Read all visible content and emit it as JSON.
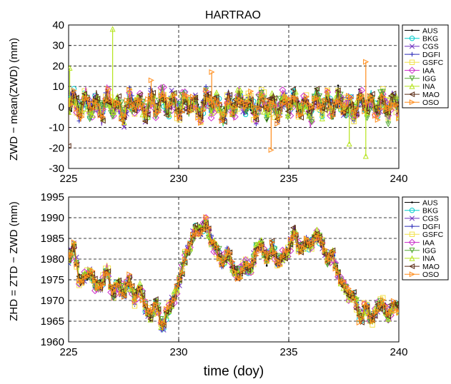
{
  "figure": {
    "xlabel": "time (doy)"
  },
  "legend_entries": [
    {
      "name": "AUS",
      "color": "#000000",
      "marker": "dot"
    },
    {
      "name": "BKG",
      "color": "#00cccc",
      "marker": "circle"
    },
    {
      "name": "CGS",
      "color": "#6b2fbf",
      "marker": "x"
    },
    {
      "name": "DGFI",
      "color": "#2a2ab8",
      "marker": "plus"
    },
    {
      "name": "GSFC",
      "color": "#f2e14a",
      "marker": "square"
    },
    {
      "name": "IAA",
      "color": "#cc33cc",
      "marker": "diamond"
    },
    {
      "name": "IGG",
      "color": "#55aa33",
      "marker": "triangle-down"
    },
    {
      "name": "INA",
      "color": "#b5e41c",
      "marker": "triangle-up"
    },
    {
      "name": "MAO",
      "color": "#5a2b14",
      "marker": "triangle-left"
    },
    {
      "name": "OSO",
      "color": "#ff8c1a",
      "marker": "triangle-right"
    }
  ],
  "chart_data": [
    {
      "type": "line",
      "title": "HARTRAO",
      "xlabel": "",
      "ylabel": "ZWD − mean(ZWD) (mm)",
      "xlim": [
        225,
        240
      ],
      "ylim": [
        -30,
        40
      ],
      "xticks": [
        225,
        230,
        235,
        240
      ],
      "yticks": [
        -30,
        -20,
        -10,
        0,
        10,
        20,
        30,
        40
      ],
      "grid": true,
      "legend_position": "right",
      "series_names": [
        "AUS",
        "BKG",
        "CGS",
        "DGFI",
        "GSFC",
        "IAA",
        "IGG",
        "INA",
        "MAO",
        "OSO"
      ],
      "x": [
        225.0,
        225.25,
        225.5,
        225.75,
        226.0,
        226.25,
        226.5,
        226.75,
        227.0,
        227.25,
        227.5,
        227.75,
        228.0,
        228.25,
        228.5,
        228.75,
        229.0,
        229.25,
        229.5,
        229.75,
        230.0,
        230.25,
        230.5,
        230.75,
        231.0,
        231.25,
        231.5,
        231.75,
        232.0,
        232.25,
        232.5,
        232.75,
        233.0,
        233.25,
        233.5,
        233.75,
        234.0,
        234.25,
        234.5,
        234.75,
        235.0,
        235.25,
        235.5,
        235.75,
        236.0,
        236.25,
        236.5,
        236.75,
        237.0,
        237.25,
        237.5,
        237.75,
        238.0,
        238.25,
        238.5,
        238.75,
        239.0,
        239.25,
        239.5,
        239.75,
        240.0
      ],
      "y": [
        0,
        5,
        -4,
        6,
        -3,
        4,
        -5,
        7,
        -2,
        3,
        -6,
        5,
        -1,
        4,
        -5,
        6,
        -3,
        7,
        -2,
        5,
        -4,
        6,
        -1,
        3,
        -5,
        7,
        -2,
        4,
        -6,
        5,
        -3,
        6,
        -1,
        4,
        -5,
        7,
        -2,
        3,
        -4,
        6,
        -1,
        5,
        -3,
        4,
        -6,
        7,
        -2,
        5,
        -4,
        6,
        -1,
        3,
        -5,
        7,
        -2,
        4,
        -3,
        6,
        -4,
        5,
        -2
      ],
      "annotations": [
        {
          "series": "INA",
          "x": 225.05,
          "y": 19
        },
        {
          "series": "INA",
          "x": 227.0,
          "y": 38
        },
        {
          "series": "OSO",
          "x": 228.75,
          "y": 13
        },
        {
          "series": "OSO",
          "x": 231.5,
          "y": 17
        },
        {
          "series": "INA",
          "x": 237.75,
          "y": -18
        },
        {
          "series": "INA",
          "x": 238.5,
          "y": -24
        },
        {
          "series": "OSO",
          "x": 238.5,
          "y": 22
        },
        {
          "series": "MAO",
          "x": 225.0,
          "y": -19
        },
        {
          "series": "OSO",
          "x": 234.2,
          "y": -21
        }
      ]
    },
    {
      "type": "line",
      "title": "",
      "xlabel": "time (doy)",
      "ylabel": "ZHD = ZTD − ZWD (mm)",
      "xlim": [
        225,
        240
      ],
      "ylim": [
        1960,
        1995
      ],
      "xticks": [
        225,
        230,
        235,
        240
      ],
      "yticks": [
        1960,
        1965,
        1970,
        1975,
        1980,
        1985,
        1990,
        1995
      ],
      "grid": true,
      "legend_position": "right",
      "series_names": [
        "AUS",
        "BKG",
        "CGS",
        "DGFI",
        "GSFC",
        "IAA",
        "IGG",
        "INA",
        "MAO",
        "OSO"
      ],
      "x": [
        225.0,
        225.25,
        225.5,
        225.75,
        226.0,
        226.25,
        226.5,
        226.75,
        227.0,
        227.25,
        227.5,
        227.75,
        228.0,
        228.25,
        228.5,
        228.75,
        229.0,
        229.25,
        229.5,
        229.75,
        230.0,
        230.25,
        230.5,
        230.75,
        231.0,
        231.25,
        231.5,
        231.75,
        232.0,
        232.25,
        232.5,
        232.75,
        233.0,
        233.25,
        233.5,
        233.75,
        234.0,
        234.25,
        234.5,
        234.75,
        235.0,
        235.25,
        235.5,
        235.75,
        236.0,
        236.25,
        236.5,
        236.75,
        237.0,
        237.25,
        237.5,
        237.75,
        238.0,
        238.25,
        238.5,
        238.75,
        239.0,
        239.25,
        239.5,
        239.75,
        240.0
      ],
      "y": [
        1980,
        1983,
        1974,
        1976,
        1977,
        1973,
        1974,
        1978,
        1971,
        1974,
        1972,
        1975,
        1970,
        1973,
        1968,
        1966,
        1970,
        1963,
        1968,
        1970,
        1974,
        1980,
        1983,
        1987,
        1987,
        1989,
        1984,
        1982,
        1979,
        1982,
        1977,
        1976,
        1979,
        1977,
        1982,
        1984,
        1980,
        1983,
        1979,
        1981,
        1982,
        1987,
        1982,
        1984,
        1983,
        1986,
        1984,
        1980,
        1981,
        1976,
        1974,
        1971,
        1971,
        1965,
        1969,
        1965,
        1968,
        1970,
        1966,
        1969,
        1968
      ]
    }
  ]
}
